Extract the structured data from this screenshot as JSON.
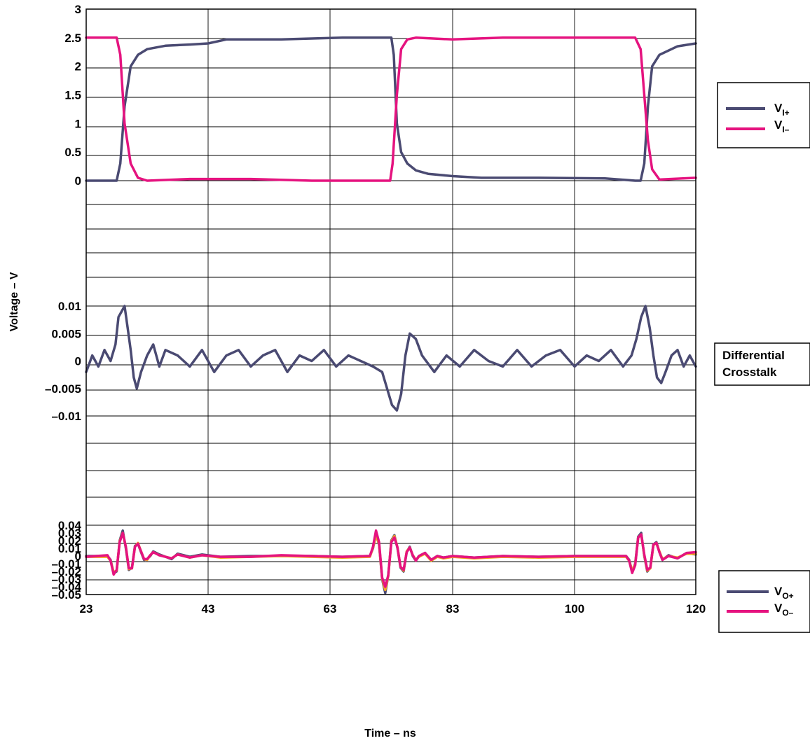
{
  "chart_data": {
    "type": "line",
    "title": "",
    "xlabel": "Time – ns",
    "ylabel": "Voltage – V",
    "x_ticks": [
      "23",
      "43",
      "63",
      "83",
      "100",
      "120"
    ],
    "x_range": [
      23,
      120
    ],
    "grid": true,
    "colors": {
      "navy": "#4a4a72",
      "magenta": "#e5137f",
      "orange": "#f5a623"
    },
    "panels": [
      {
        "name": "input",
        "ylim": [
          0,
          3
        ],
        "y_ticks": [
          "0",
          "0.5",
          "1",
          "1.5",
          "2",
          "2.5",
          "3"
        ],
        "y_tick_values": [
          0,
          0.5,
          1,
          1.5,
          2,
          2.5,
          3
        ],
        "legend": [
          {
            "main": "V",
            "sub": "I+",
            "color": "#4a4a72"
          },
          {
            "main": "V",
            "sub": "I–",
            "color": "#e5137f"
          }
        ],
        "series": [
          {
            "key": "vi_plus",
            "color": "#4a4a72",
            "x": [
              23,
              28.0,
              28.6,
              29.3,
              30.3,
              31.5,
              33,
              36,
              40,
              43,
              46,
              55,
              65,
              73.0,
              73.4,
              73.9,
              74.6,
              75.6,
              77,
              79,
              83,
              87,
              95,
              105,
              110,
              110.9,
              111.5,
              112.1,
              112.8,
              114,
              117,
              120
            ],
            "values": [
              0,
              0,
              0.3,
              1.3,
              2.0,
              2.2,
              2.3,
              2.36,
              2.38,
              2.4,
              2.47,
              2.47,
              2.5,
              2.5,
              2.2,
              1.0,
              0.5,
              0.3,
              0.18,
              0.12,
              0.08,
              0.05,
              0.05,
              0.04,
              0,
              0,
              0.3,
              1.3,
              2.0,
              2.2,
              2.35,
              2.4
            ]
          },
          {
            "key": "vi_minus",
            "color": "#e5137f",
            "x": [
              23,
              28.0,
              28.6,
              29.3,
              30.3,
              31.5,
              33,
              40,
              50,
              60,
              72.8,
              73.2,
              73.9,
              74.6,
              75.6,
              77,
              83,
              90,
              100,
              110,
              110.9,
              111.5,
              112.1,
              112.8,
              114,
              120
            ],
            "values": [
              2.5,
              2.5,
              2.2,
              1.0,
              0.3,
              0.05,
              0,
              0.03,
              0.03,
              0,
              0,
              0.3,
              1.5,
              2.3,
              2.47,
              2.5,
              2.47,
              2.5,
              2.5,
              2.5,
              2.3,
              1.5,
              0.7,
              0.2,
              0.02,
              0.05
            ]
          }
        ]
      },
      {
        "name": "crosstalk",
        "ylim": [
          -0.01,
          0.01
        ],
        "y_ticks": [
          "0.01",
          "0.005",
          "0",
          "–0.005",
          "–0.01"
        ],
        "y_tick_values": [
          0.01,
          0.005,
          0,
          -0.005,
          -0.01
        ],
        "legend_label_lines": [
          "Differential",
          "Crosstalk"
        ],
        "series": [
          {
            "key": "crosstalk",
            "color": "#4a4a72",
            "x": [
              23,
              24,
              25,
              26,
              27,
              27.8,
              28.3,
              28.8,
              29.3,
              29.8,
              30.3,
              30.8,
              31.3,
              32.0,
              33,
              34,
              35,
              36,
              38,
              40,
              42,
              44,
              46,
              48,
              50,
              52,
              54,
              56,
              58,
              60,
              62,
              64,
              66,
              68,
              70,
              71.5,
              72.3,
              73.1,
              73.9,
              74.6,
              75.3,
              76.0,
              77,
              78,
              80,
              82,
              84,
              86,
              88,
              90,
              92,
              94,
              96,
              98,
              100,
              102,
              104,
              106,
              108,
              109.4,
              110.2,
              111.0,
              111.7,
              112.4,
              113.0,
              113.6,
              114.3,
              115,
              116,
              117,
              118,
              119,
              120
            ],
            "values": [
              -0.002,
              0.001,
              -0.001,
              0.002,
              0,
              0.003,
              0.008,
              0.009,
              0.01,
              0.006,
              0.002,
              -0.003,
              -0.005,
              -0.002,
              0.001,
              0.003,
              -0.001,
              0.002,
              0.001,
              -0.001,
              0.002,
              -0.002,
              0.001,
              0.002,
              -0.001,
              0.001,
              0.002,
              -0.002,
              0.001,
              0,
              0.002,
              -0.001,
              0.001,
              0,
              -0.001,
              -0.002,
              -0.005,
              -0.008,
              -0.009,
              -0.006,
              0.001,
              0.005,
              0.004,
              0.001,
              -0.002,
              0.001,
              -0.001,
              0.002,
              0,
              -0.001,
              0.002,
              -0.001,
              0.001,
              0.002,
              -0.001,
              0.001,
              0,
              0.002,
              -0.001,
              0.001,
              0.004,
              0.008,
              0.01,
              0.006,
              0.001,
              -0.003,
              -0.004,
              -0.002,
              0.001,
              0.002,
              -0.001,
              0.001,
              -0.001
            ]
          }
        ]
      },
      {
        "name": "output",
        "ylim": [
          -0.05,
          0.04
        ],
        "y_ticks": [
          "0.04",
          "0.03",
          "0.02",
          "0.01",
          "0",
          "–0.01",
          "–0.02",
          "–0.03",
          "–0.04",
          "–0.05"
        ],
        "y_tick_values": [
          0.04,
          0.03,
          0.02,
          0.01,
          0,
          -0.01,
          -0.02,
          -0.03,
          -0.04,
          -0.05
        ],
        "legend": [
          {
            "main": "V",
            "sub": "O+",
            "color": "#4a4a72"
          },
          {
            "main": "V",
            "sub": "O–",
            "color": "#e5137f"
          }
        ],
        "series": [
          {
            "key": "vo_plus",
            "color": "#4a4a72",
            "x": [
              23,
              26.5,
              27.0,
              27.5,
              28.0,
              28.5,
              29.0,
              29.5,
              30.0,
              30.5,
              31.0,
              31.5,
              32.0,
              32.5,
              33.0,
              33.5,
              34.0,
              35.0,
              37.0,
              38.0,
              40.0,
              42,
              45,
              50,
              55,
              60,
              65,
              69.5,
              70.0,
              70.5,
              71.0,
              71.5,
              72.0,
              72.5,
              73.0,
              73.5,
              74.0,
              74.5,
              75.0,
              75.5,
              76.0,
              76.5,
              77.0,
              77.5,
              78.5,
              79.5,
              80.5,
              81.5,
              83,
              86,
              90,
              95,
              100,
              105,
              108.5,
              109.0,
              109.5,
              110.0,
              110.5,
              111.0,
              111.5,
              112.0,
              112.5,
              113.0,
              113.5,
              114.0,
              114.5,
              115.5,
              117,
              118.5,
              120
            ],
            "values": [
              0,
              0,
              -0.005,
              -0.022,
              -0.02,
              0.02,
              0.033,
              0.01,
              -0.018,
              -0.015,
              0.013,
              0.016,
              0.005,
              -0.005,
              -0.004,
              0,
              0.006,
              0.002,
              -0.004,
              0.003,
              -0.001,
              0.002,
              -0.001,
              0,
              0,
              0,
              -0.001,
              0,
              0.01,
              0.028,
              0.015,
              -0.03,
              -0.048,
              -0.025,
              0.02,
              0.027,
              0.01,
              -0.015,
              -0.02,
              0.005,
              0.012,
              0,
              -0.006,
              0,
              0.004,
              -0.005,
              0,
              -0.002,
              0,
              -0.002,
              0,
              -0.001,
              0,
              0,
              0,
              -0.005,
              -0.02,
              -0.01,
              0.025,
              0.03,
              0,
              -0.02,
              -0.015,
              0.015,
              0.018,
              0.005,
              -0.005,
              0.001,
              -0.003,
              0.004,
              0.002
            ]
          },
          {
            "key": "vo_minus_overlay",
            "color": "#f5a623",
            "x": [
              23,
              26.5,
              27.0,
              27.5,
              28.0,
              28.5,
              29.0,
              29.5,
              30.0,
              30.5,
              31.0,
              31.5,
              32.0,
              32.5,
              33.0,
              33.5,
              34.0,
              35.0,
              37.0,
              38.0,
              40.0,
              42,
              45,
              50,
              55,
              60,
              65,
              69.5,
              70.0,
              70.5,
              71.0,
              71.5,
              72.0,
              72.5,
              73.0,
              73.5,
              74.0,
              74.5,
              75.0,
              75.5,
              76.0,
              76.5,
              77.0,
              77.5,
              78.5,
              79.5,
              80.5,
              81.5,
              83,
              86,
              90,
              95,
              100,
              105,
              108.5,
              109.0,
              109.5,
              110.0,
              110.5,
              111.0,
              111.5,
              112.0,
              112.5,
              113.0,
              113.5,
              114.0,
              114.5,
              115.5,
              117,
              118.5,
              120
            ],
            "values": [
              -0.001,
              -0.001,
              -0.006,
              -0.021,
              -0.019,
              0.019,
              0.03,
              0.012,
              -0.017,
              -0.016,
              0.012,
              0.017,
              0.006,
              -0.004,
              -0.005,
              0.001,
              0.005,
              0.001,
              -0.003,
              0.002,
              -0.002,
              0.001,
              -0.002,
              -0.001,
              0,
              -0.001,
              -0.002,
              -0.001,
              0.011,
              0.027,
              0.016,
              -0.029,
              -0.044,
              -0.026,
              0.019,
              0.026,
              0.011,
              -0.014,
              -0.019,
              0.006,
              0.011,
              0.001,
              -0.005,
              -0.001,
              0.003,
              -0.006,
              -0.001,
              -0.003,
              -0.001,
              -0.003,
              -0.001,
              -0.002,
              -0.001,
              -0.001,
              -0.001,
              -0.006,
              -0.019,
              -0.011,
              0.024,
              0.028,
              0.001,
              -0.019,
              -0.016,
              0.014,
              0.017,
              0.006,
              -0.004,
              0,
              -0.002,
              0.003,
              0.003
            ]
          },
          {
            "key": "vo_minus",
            "color": "#e5137f",
            "x": [
              23,
              26.5,
              27.0,
              27.5,
              28.0,
              28.5,
              29.0,
              29.5,
              30.0,
              30.5,
              31.0,
              31.5,
              32.0,
              32.5,
              33.0,
              33.5,
              34.0,
              35.0,
              37.0,
              38.0,
              40.0,
              42,
              45,
              50,
              55,
              60,
              65,
              69.5,
              70.0,
              70.5,
              71.0,
              71.5,
              72.0,
              72.5,
              73.0,
              73.5,
              74.0,
              74.5,
              75.0,
              75.5,
              76.0,
              76.5,
              77.0,
              77.5,
              78.5,
              79.5,
              80.5,
              81.5,
              83,
              86,
              90,
              95,
              100,
              105,
              108.5,
              109.0,
              109.5,
              110.0,
              110.5,
              111.0,
              111.5,
              112.0,
              112.5,
              113.0,
              113.5,
              114.0,
              114.5,
              115.5,
              117,
              118.5,
              120
            ],
            "values": [
              -0.001,
              0.001,
              -0.006,
              -0.024,
              -0.018,
              0.018,
              0.03,
              0.012,
              -0.016,
              -0.016,
              0.012,
              0.016,
              0.006,
              -0.004,
              -0.004,
              0.001,
              0.005,
              0.001,
              -0.003,
              0.002,
              -0.002,
              0.001,
              -0.001,
              -0.001,
              0.001,
              0,
              -0.001,
              0,
              0.012,
              0.033,
              0.018,
              -0.028,
              -0.04,
              -0.025,
              0.018,
              0.024,
              0.011,
              -0.014,
              -0.018,
              0.005,
              0.011,
              0.001,
              -0.006,
              0,
              0.004,
              -0.005,
              0,
              -0.002,
              0,
              -0.002,
              0,
              -0.001,
              0,
              0,
              0,
              -0.006,
              -0.022,
              -0.012,
              0.024,
              0.028,
              0.002,
              -0.018,
              -0.015,
              0.015,
              0.017,
              0.005,
              -0.005,
              0,
              -0.003,
              0.004,
              0.005
            ]
          }
        ]
      }
    ]
  }
}
